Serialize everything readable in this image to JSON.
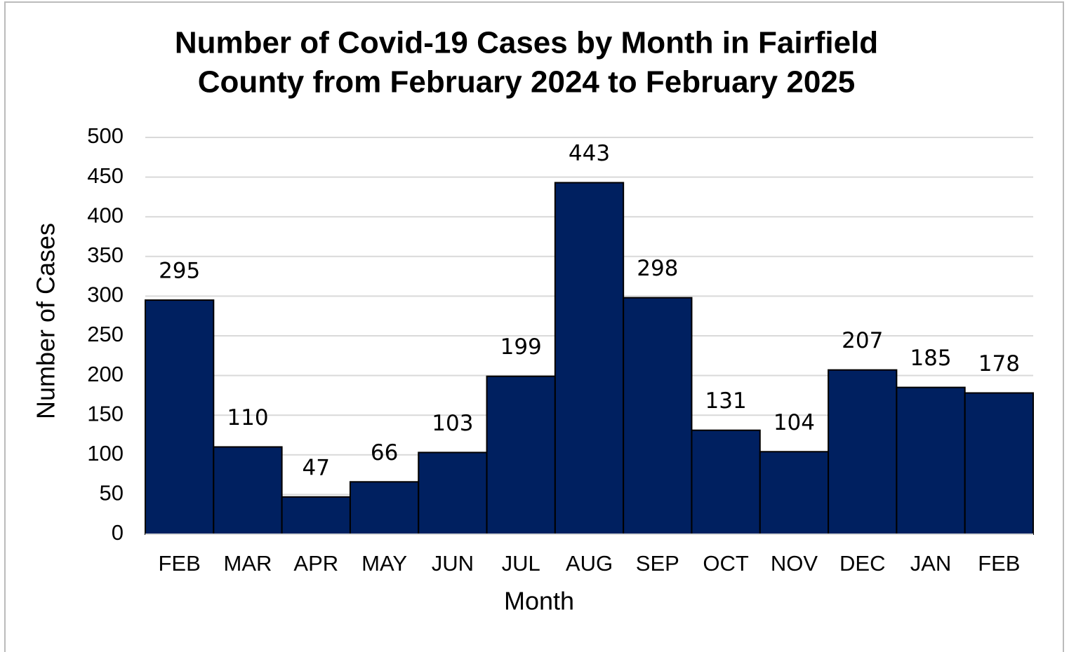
{
  "chart_data": {
    "type": "bar",
    "title": [
      "Number of Covid-19 Cases by Month in Fairfield",
      "County from February 2024 to February 2025"
    ],
    "x_label": "Month",
    "y_label": "Number of Cases",
    "categories": [
      "FEB",
      "MAR",
      "APR",
      "MAY",
      "JUN",
      "JUL",
      "AUG",
      "SEP",
      "OCT",
      "NOV",
      "DEC",
      "JAN",
      "FEB"
    ],
    "values": [
      295,
      110,
      47,
      66,
      103,
      199,
      443,
      298,
      131,
      104,
      207,
      185,
      178
    ],
    "color": "#002060",
    "ylim": [
      0,
      500
    ],
    "yticks": [
      0,
      50,
      100,
      150,
      200,
      250,
      300,
      350,
      400,
      450,
      500
    ],
    "grid": true
  }
}
